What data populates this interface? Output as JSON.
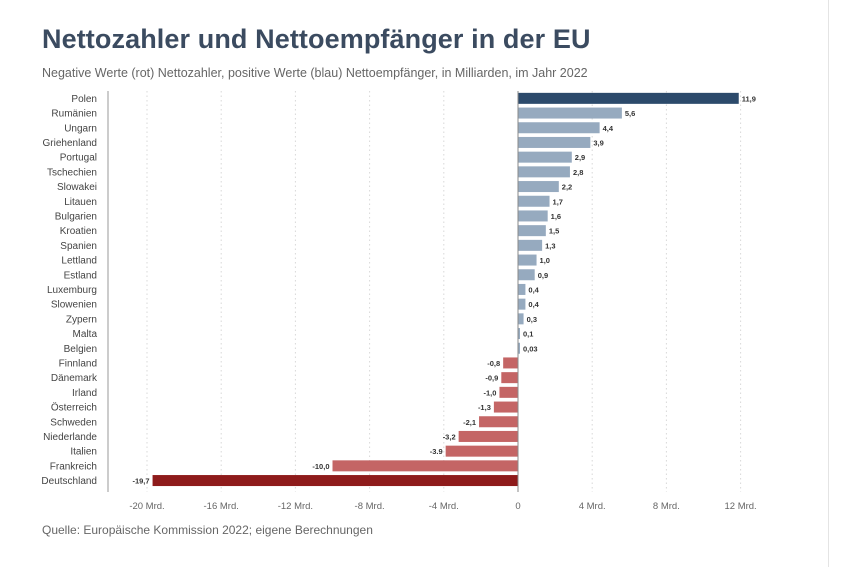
{
  "title": "Nettozahler und Nettoempfänger in der EU",
  "subtitle": "Negative Werte (rot) Nettozahler, positive Werte (blau) Nettoempfänger, in Milliarden, im Jahr 2022",
  "source": "Quelle: Europäische Kommission 2022; eigene Berechnungen",
  "colors": {
    "highlight_positive": "#2c4a6b",
    "positive": "#96aabf",
    "negative": "#c46565",
    "highlight_negative": "#8e1b1b",
    "grid": "#d8d8d8",
    "axis": "#999999"
  },
  "chart_data": {
    "type": "bar",
    "orientation": "horizontal",
    "categories": [
      "Polen",
      "Rumänien",
      "Ungarn",
      "Griehenland",
      "Portugal",
      "Tschechien",
      "Slowakei",
      "Litauen",
      "Bulgarien",
      "Kroatien",
      "Spanien",
      "Lettland",
      "Estland",
      "Luxemburg",
      "Slowenien",
      "Zypern",
      "Malta",
      "Belgien",
      "Finnland",
      "Dänemark",
      "Irland",
      "Österreich",
      "Schweden",
      "Niederlande",
      "Italien",
      "Frankreich",
      "Deutschland"
    ],
    "values": [
      11.9,
      5.6,
      4.4,
      3.9,
      2.9,
      2.8,
      2.2,
      1.7,
      1.6,
      1.5,
      1.3,
      1.0,
      0.9,
      0.4,
      0.4,
      0.3,
      0.1,
      0.03,
      -0.8,
      -0.9,
      -1.0,
      -1.3,
      -2.1,
      -3.2,
      -3.9,
      -10.0,
      -19.7
    ],
    "value_labels": [
      "11,9",
      "5,6",
      "4,4",
      "3,9",
      "2,9",
      "2,8",
      "2,2",
      "1,7",
      "1,6",
      "1,5",
      "1,3",
      "1,0",
      "0,9",
      "0,4",
      "0,4",
      "0,3",
      "0,1",
      "0,03",
      "-0,8",
      "-0,9",
      "-1,0",
      "-1,3",
      "-2,1",
      "-3,2",
      "-3.9",
      "-10,0",
      "-19,7"
    ],
    "xlim": [
      -20,
      12
    ],
    "x_ticks": [
      -20,
      -16,
      -12,
      -8,
      -4,
      0,
      4,
      8,
      12
    ],
    "x_tick_labels": [
      "-20 Mrd.",
      "-16 Mrd.",
      "-12 Mrd.",
      "-8 Mrd.",
      "-4 Mrd.",
      "0",
      "4 Mrd.",
      "8 Mrd.",
      "12 Mrd."
    ],
    "grid": true,
    "legend": "none"
  }
}
